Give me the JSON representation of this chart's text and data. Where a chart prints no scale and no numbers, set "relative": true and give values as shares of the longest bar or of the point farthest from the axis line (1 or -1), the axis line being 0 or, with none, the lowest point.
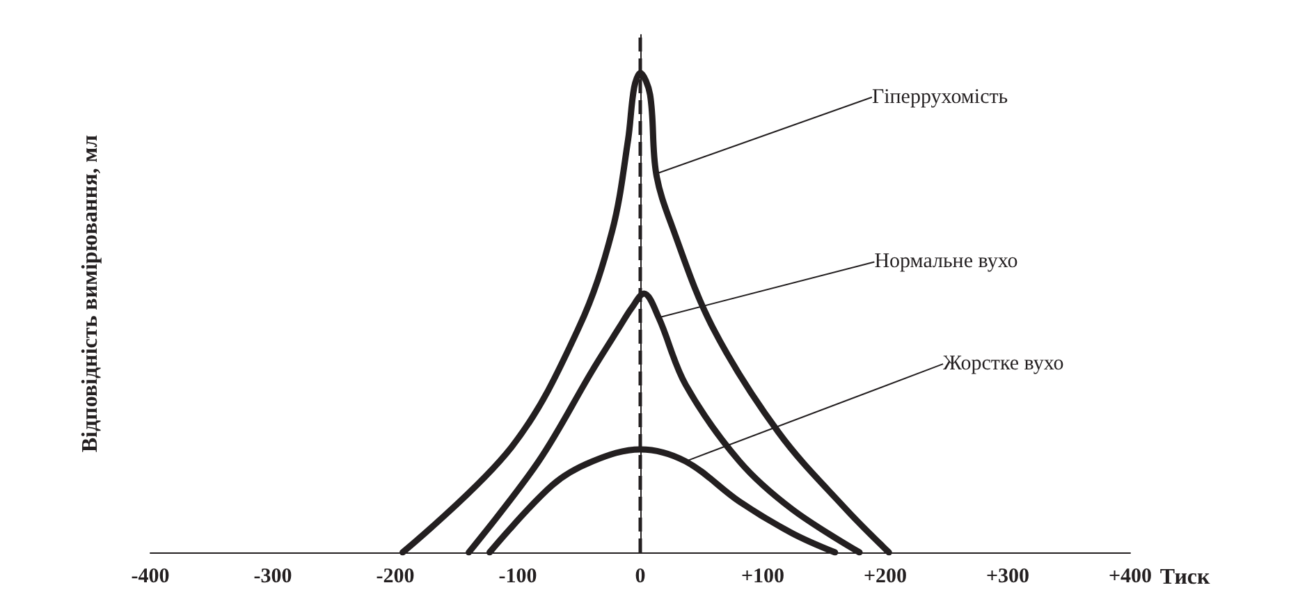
{
  "chart_data": {
    "type": "line",
    "relative": true,
    "xlabel": "Тиск",
    "ylabel": "Відповідність вимірювання, мл",
    "xlim": [
      -400,
      400
    ],
    "xticks": [
      -400,
      -300,
      -200,
      -100,
      0,
      {
        "value": 100,
        "label": "+100"
      },
      {
        "value": 200,
        "label": "+200"
      },
      {
        "value": 300,
        "label": "+300"
      },
      {
        "value": 400,
        "label": "+400"
      }
    ],
    "tick_labels": "x",
    "grid": false,
    "legend": false,
    "marker": "none",
    "line_style": "solid",
    "ref_lines": [
      {
        "axis": "x",
        "value": 0,
        "color": "#231f20",
        "line_style": "dashed"
      }
    ],
    "series": [
      {
        "name": "Гіперрухомість",
        "color": "#231f20",
        "x": [
          -194,
          -105,
          -50,
          -23,
          -10,
          -5,
          0,
          8,
          13,
          26,
          59,
          113,
          168,
          203
        ],
        "values": [
          0,
          0.22,
          0.47,
          0.67,
          0.86,
          0.97,
          1,
          0.955,
          0.79,
          0.68,
          0.47,
          0.25,
          0.09,
          0
        ]
      },
      {
        "name": "Нормальне вухо",
        "color": "#231f20",
        "x": [
          -140,
          -83,
          -39,
          -17,
          -7,
          3,
          15,
          37,
          81,
          124,
          179
        ],
        "values": [
          0,
          0.19,
          0.38,
          0.47,
          0.51,
          0.54,
          0.49,
          0.35,
          0.19,
          0.09,
          0
        ]
      },
      {
        "name": "Жорстке вухо",
        "color": "#231f20",
        "x": [
          -123,
          -72,
          -39,
          0,
          37,
          81,
          124,
          159
        ],
        "values": [
          0,
          0.14,
          0.19,
          0.215,
          0.19,
          0.106,
          0.04,
          0
        ]
      }
    ]
  }
}
